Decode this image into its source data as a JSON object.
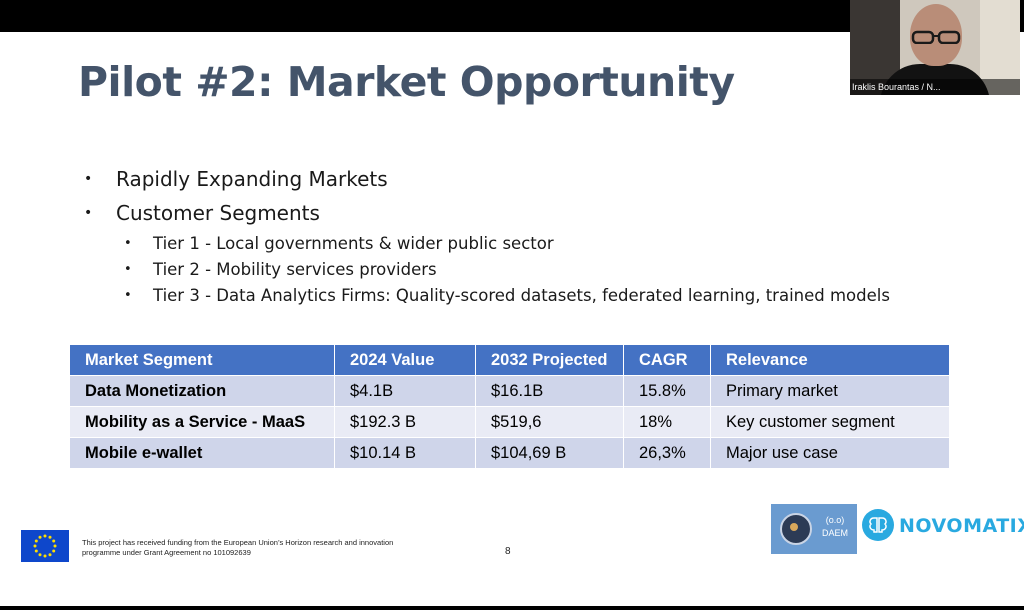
{
  "slide": {
    "title": "Pilot #2: Market Opportunity",
    "bullet_symbol": "•",
    "bullets": [
      {
        "text": "Rapidly Expanding Markets"
      },
      {
        "text": "Customer Segments"
      }
    ],
    "sub_bullets": [
      {
        "text": "Tier 1 - Local governments & wider public sector"
      },
      {
        "text": "Tier 2 - Mobility services providers"
      },
      {
        "text": "Tier 3 - Data Analytics Firms: Quality-scored datasets, federated learning, trained models"
      }
    ],
    "table": {
      "headers": [
        "Market Segment",
        "2024 Value",
        "2032 Projected",
        "CAGR",
        "Relevance"
      ],
      "rows": [
        [
          "Data Monetization",
          "$4.1B",
          "$16.1B",
          "15.8%",
          "Primary market"
        ],
        [
          "Mobility as a Service - MaaS",
          "$192.3 B",
          "$519,6",
          "18%",
          "Key customer segment"
        ],
        [
          "Mobile e-wallet",
          "$10.14 B",
          "$104,69 B",
          "26,3%",
          "Major use case"
        ]
      ]
    },
    "footer": {
      "funding_text": "This project has received funding from the European Union’s Horizon research and innovation programme under Grant Agreement no 101092639",
      "page_number": "8"
    },
    "logos": {
      "daem_text_1": "(o.o)",
      "daem_text_2": "DAEM",
      "novomatix": "NOVOMATIX",
      "eu_flag_icon": "eu-flag-icon"
    }
  },
  "video": {
    "participant_name": "Iraklis Bourantas / N..."
  },
  "colors": {
    "title": "#44546a",
    "table_header": "#4472c4",
    "row_odd": "#cfd5ea",
    "row_even": "#e9ebf5",
    "novomatix": "#29a9e0"
  }
}
